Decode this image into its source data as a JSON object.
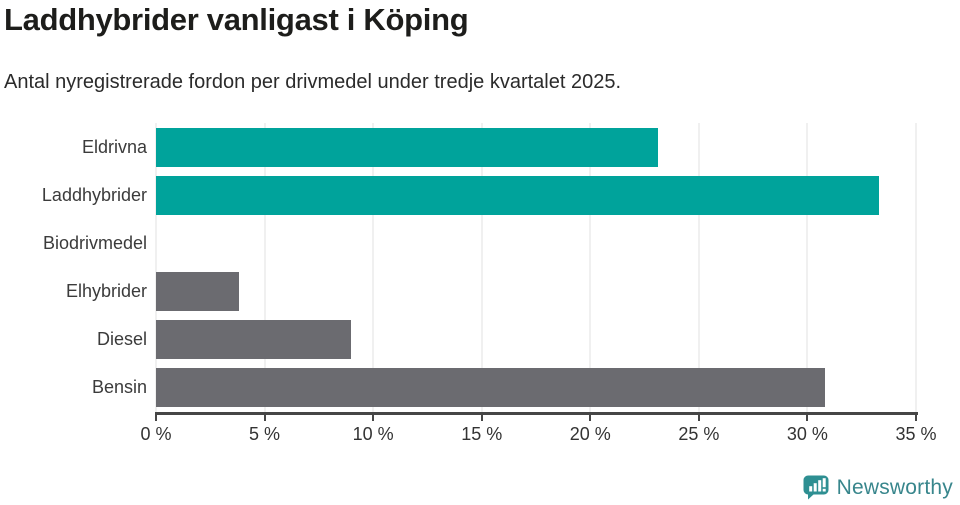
{
  "title": "Laddhybrider vanligast i Köping",
  "subtitle": "Antal nyregistrerade fordon per drivmedel under tredje kvartalet 2025.",
  "chart_data": {
    "type": "bar",
    "orientation": "horizontal",
    "title": "Laddhybrider vanligast i Köping",
    "subtitle": "Antal nyregistrerade fordon per drivmedel under tredje kvartalet 2025.",
    "categories": [
      "Eldrivna",
      "Laddhybrider",
      "Biodrivmedel",
      "Elhybrider",
      "Diesel",
      "Bensin"
    ],
    "values": [
      23.1,
      33.3,
      0,
      3.8,
      9.0,
      30.8
    ],
    "unit": "%",
    "bar_colors": [
      "#00a39b",
      "#00a39b",
      "#6b6b70",
      "#6b6b70",
      "#6b6b70",
      "#6b6b70"
    ],
    "xlabel": "",
    "ylabel": "",
    "xlim": [
      0,
      35
    ],
    "x_ticks": [
      0,
      5,
      10,
      15,
      20,
      25,
      30,
      35
    ],
    "x_tick_labels": [
      "0 %",
      "5 %",
      "10 %",
      "15 %",
      "20 %",
      "25 %",
      "30 %",
      "35 %"
    ],
    "grid": "vertical",
    "legend": "none"
  },
  "footer": {
    "brand": "Newsworthy"
  },
  "colors": {
    "highlight": "#00a39b",
    "default_bar": "#6b6b70",
    "gridline": "#e0e0e0",
    "axis": "#464646",
    "brand": "#38868c",
    "brand_icon": "#2e8f92"
  }
}
